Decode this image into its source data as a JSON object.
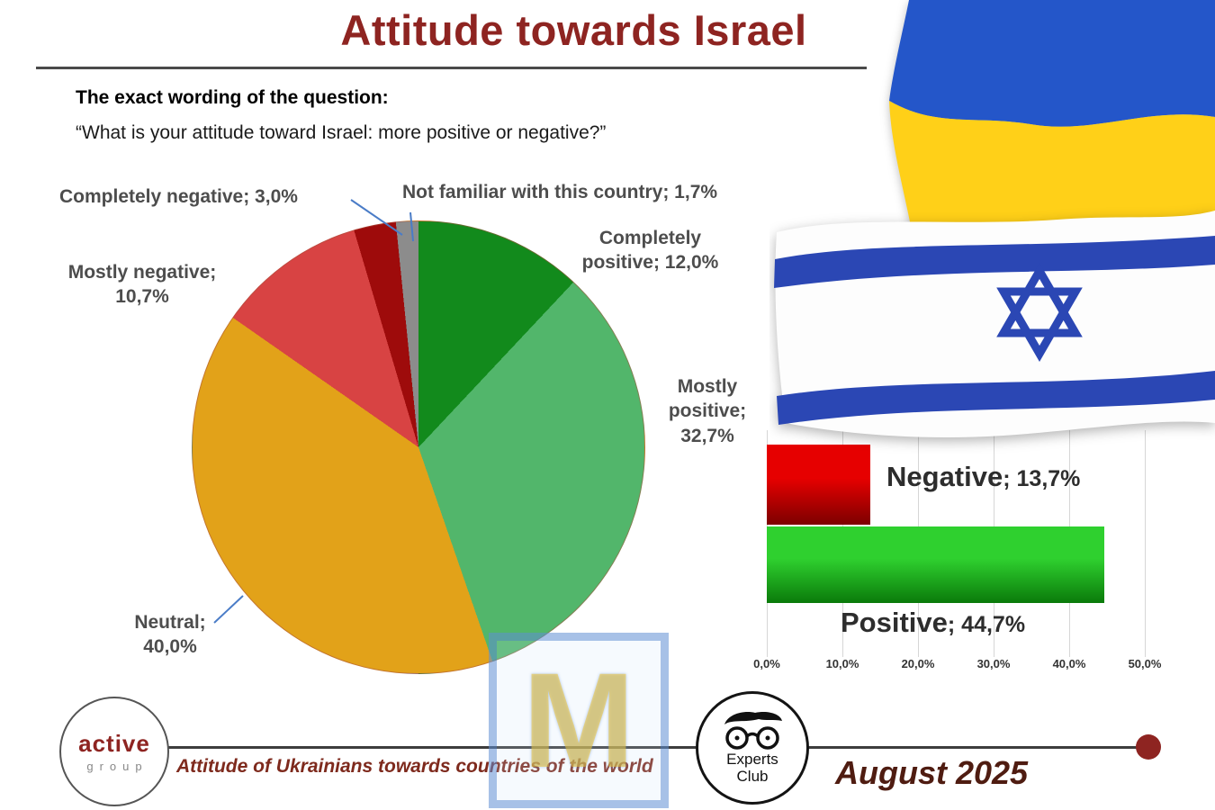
{
  "title": "Attitude towards Israel",
  "question": {
    "label": "The exact wording of the question:",
    "text": "“What is your attitude toward Israel: more positive or negative?”"
  },
  "chart_data": [
    {
      "type": "pie",
      "title": "Attitude towards Israel",
      "slices": [
        {
          "label": "Completely positive",
          "value": 12.0,
          "display": "Completely positive; 12,0%",
          "color": "#128a1c"
        },
        {
          "label": "Mostly positive",
          "value": 32.7,
          "display": "Mostly positive; 32,7%",
          "color": "#52b66b"
        },
        {
          "label": "Neutral",
          "value": 40.0,
          "display": "Neutral; 40,0%",
          "color": "#e2a219"
        },
        {
          "label": "Mostly negative",
          "value": 10.7,
          "display": "Mostly negative; 10,7%",
          "color": "#d84343"
        },
        {
          "label": "Completely negative",
          "value": 3.0,
          "display": "Completely negative; 3,0%",
          "color": "#9e0b0b"
        },
        {
          "label": "Not familiar with this country",
          "value": 1.7,
          "display": "Not familiar with this country; 1,7%",
          "color": "#8c8c8c"
        }
      ]
    },
    {
      "type": "bar",
      "orientation": "horizontal",
      "categories": [
        "Negative",
        "Positive"
      ],
      "values": [
        13.7,
        44.7
      ],
      "bars": [
        {
          "name": "Negative",
          "value": 13.7,
          "value_text": "; 13,7%",
          "color_top": "#e60000",
          "color_bottom": "#7d0000"
        },
        {
          "name": "Positive",
          "value": 44.7,
          "value_text": "; 44,7%",
          "color_top": "#2fd02f",
          "color_bottom": "#0a7a0a"
        }
      ],
      "xlim": [
        0,
        50
      ],
      "ticks": [
        "0,0%",
        "10,0%",
        "20,0%",
        "30,0%",
        "40,0%",
        "50,0%"
      ],
      "grid": true,
      "legend": "none"
    }
  ],
  "watermark": "M",
  "footer": {
    "active_logo": {
      "top": "active",
      "bottom": "group"
    },
    "caption": "Attitude of Ukrainians towards countries of the world",
    "experts_logo": {
      "line1": "Experts",
      "line2": "Club"
    },
    "date": "August 2025"
  }
}
